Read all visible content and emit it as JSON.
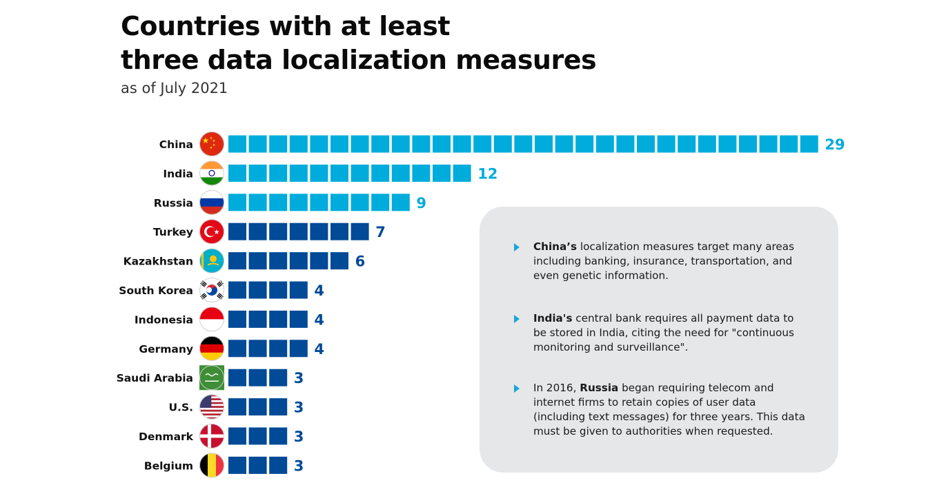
{
  "header": {
    "title_line1": "Countries with at least",
    "title_line2": "three data localization measures",
    "subtitle": "as of July 2021"
  },
  "colors": {
    "highlight": "#00ACDB",
    "default": "#004A97",
    "note_background": "#E6E7E9",
    "bullet": "#1AA6D6"
  },
  "chart_data": {
    "type": "bar",
    "orientation": "horizontal",
    "unit_style": "one block per measure",
    "categories": [
      "China",
      "India",
      "Russia",
      "Turkey",
      "Kazakhstan",
      "South Korea",
      "Indonesia",
      "Germany",
      "Saudi Arabia",
      "U.S.",
      "Denmark",
      "Belgium"
    ],
    "values": [
      29,
      12,
      9,
      7,
      6,
      4,
      4,
      4,
      3,
      3,
      3,
      3
    ],
    "highlighted": [
      "China",
      "India",
      "Russia"
    ],
    "flag_icons": [
      "flag-china-icon",
      "flag-india-icon",
      "flag-russia-icon",
      "flag-turkey-icon",
      "flag-kazakhstan-icon",
      "flag-south-korea-icon",
      "flag-indonesia-icon",
      "flag-germany-icon",
      "flag-saudi-arabia-icon",
      "flag-us-icon",
      "flag-denmark-icon",
      "flag-belgium-icon"
    ],
    "title": "Countries with at least three data localization measures",
    "subtitle": "as of July 2021"
  },
  "notes": [
    {
      "prefix": "",
      "bold": "China’s",
      "text": " localization measures target many areas including banking, insurance, transportation, and even genetic information."
    },
    {
      "prefix": "",
      "bold": "India's",
      "text": " central bank requires all payment data to be stored in India, citing the need for \"continuous monitoring and surveillance\"."
    },
    {
      "prefix": "In 2016, ",
      "bold": "Russia",
      "text": " began requiring telecom and internet firms to retain copies of user data (including text messages) for three years. This data must be given to authorities when requested."
    }
  ]
}
